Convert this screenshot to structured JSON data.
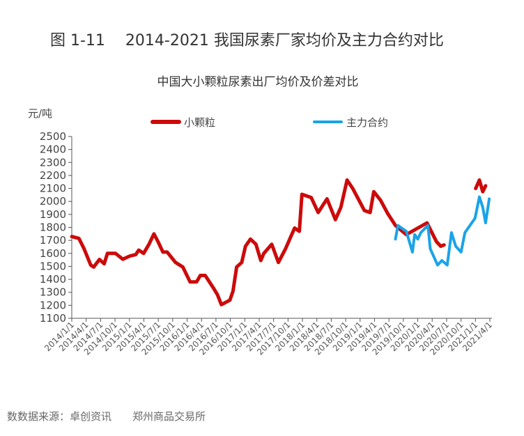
{
  "figure_title": "图 1-11　 2014-2021 我国尿素厂家均价及主力合约对比",
  "source": "数数据来源：卓创资讯　　郑州商品交易所",
  "colors": {
    "small_granule": "#cc0a0a",
    "main_contract": "#1aa3e8",
    "axis": "#555555"
  },
  "chart_data": {
    "type": "line",
    "title": "中国大小颗粒尿素出厂均价及价差对比",
    "ylabel": "元/吨",
    "xlabel": "",
    "ylim": [
      1100,
      2500
    ],
    "yticks": [
      1100,
      1200,
      1300,
      1400,
      1500,
      1600,
      1700,
      1800,
      1900,
      2000,
      2100,
      2200,
      2300,
      2400,
      2500
    ],
    "xlim": [
      "2014-01-01",
      "2021-04-01"
    ],
    "xticks": [
      "2014/1/1",
      "2014/4/1",
      "2014/7/1",
      "2014/10/1",
      "2015/1/1",
      "2015/4/1",
      "2015/7/1",
      "2015/10/1",
      "2016/1/1",
      "2016/4/1",
      "2016/7/1",
      "2016/10/1",
      "2017/1/1",
      "2017/4/1",
      "2017/7/1",
      "2017/10/1",
      "2018/1/1",
      "2018/4/1",
      "2018/7/1",
      "2018/10/1",
      "2019/1/1",
      "2019/4/1",
      "2019/7/1",
      "2019/10/1",
      "2020/1/1",
      "2020/4/1",
      "2020/7/1",
      "2020/10/1",
      "2021/1/1",
      "2021/4/1"
    ],
    "grid": false,
    "legend": "top",
    "series": [
      {
        "name": "小颗粒",
        "color": "#cc0a0a",
        "points": [
          [
            "2014-01-01",
            1730
          ],
          [
            "2014-02-15",
            1715
          ],
          [
            "2014-03-20",
            1635
          ],
          [
            "2014-05-01",
            1510
          ],
          [
            "2014-05-20",
            1495
          ],
          [
            "2014-06-25",
            1553
          ],
          [
            "2014-07-25",
            1520
          ],
          [
            "2014-08-15",
            1600
          ],
          [
            "2014-10-05",
            1600
          ],
          [
            "2014-11-20",
            1555
          ],
          [
            "2015-01-05",
            1580
          ],
          [
            "2015-02-10",
            1590
          ],
          [
            "2015-03-01",
            1625
          ],
          [
            "2015-04-01",
            1600
          ],
          [
            "2015-05-05",
            1670
          ],
          [
            "2015-06-05",
            1750
          ],
          [
            "2015-07-01",
            1690
          ],
          [
            "2015-08-01",
            1610
          ],
          [
            "2015-08-28",
            1610
          ],
          [
            "2015-10-20",
            1530
          ],
          [
            "2015-12-05",
            1495
          ],
          [
            "2016-01-20",
            1380
          ],
          [
            "2016-03-01",
            1380
          ],
          [
            "2016-03-25",
            1430
          ],
          [
            "2016-04-25",
            1430
          ],
          [
            "2016-06-15",
            1335
          ],
          [
            "2016-07-12",
            1280
          ],
          [
            "2016-08-05",
            1205
          ],
          [
            "2016-09-28",
            1240
          ],
          [
            "2016-10-18",
            1310
          ],
          [
            "2016-11-10",
            1495
          ],
          [
            "2016-12-12",
            1530
          ],
          [
            "2017-01-05",
            1655
          ],
          [
            "2017-02-05",
            1710
          ],
          [
            "2017-03-12",
            1670
          ],
          [
            "2017-04-12",
            1545
          ],
          [
            "2017-05-01",
            1600
          ],
          [
            "2017-06-20",
            1670
          ],
          [
            "2017-08-01",
            1530
          ],
          [
            "2017-09-15",
            1635
          ],
          [
            "2017-11-12",
            1795
          ],
          [
            "2017-12-12",
            1770
          ],
          [
            "2017-12-28",
            2055
          ],
          [
            "2018-02-25",
            2030
          ],
          [
            "2018-04-10",
            1915
          ],
          [
            "2018-06-05",
            2020
          ],
          [
            "2018-07-28",
            1860
          ],
          [
            "2018-09-01",
            1955
          ],
          [
            "2018-10-10",
            2165
          ],
          [
            "2018-11-15",
            2100
          ],
          [
            "2019-01-28",
            1930
          ],
          [
            "2019-03-05",
            1915
          ],
          [
            "2019-03-28",
            2075
          ],
          [
            "2019-05-10",
            2010
          ],
          [
            "2019-06-25",
            1905
          ],
          [
            "2019-08-12",
            1815
          ],
          [
            "2019-10-20",
            1745
          ],
          [
            "2020-02-28",
            1835
          ],
          [
            "2020-04-28",
            1690
          ],
          [
            "2020-05-25",
            1655
          ],
          [
            "2020-06-15",
            1665
          ],
          [
            "2020-06-16",
            null
          ],
          [
            "2021-01-01",
            2100
          ],
          [
            "2021-01-25",
            2165
          ],
          [
            "2021-02-15",
            2075
          ],
          [
            "2021-03-05",
            2120
          ]
        ]
      },
      {
        "name": "主力合约",
        "color": "#1aa3e8",
        "points": [
          [
            "2019-08-12",
            1710
          ],
          [
            "2019-08-28",
            1815
          ],
          [
            "2019-10-20",
            1770
          ],
          [
            "2019-11-28",
            1610
          ],
          [
            "2019-12-12",
            1745
          ],
          [
            "2020-01-01",
            1710
          ],
          [
            "2020-01-20",
            1760
          ],
          [
            "2020-03-05",
            1815
          ],
          [
            "2020-03-20",
            1635
          ],
          [
            "2020-05-05",
            1510
          ],
          [
            "2020-06-01",
            1545
          ],
          [
            "2020-07-05",
            1510
          ],
          [
            "2020-08-01",
            1760
          ],
          [
            "2020-08-28",
            1655
          ],
          [
            "2020-10-01",
            1610
          ],
          [
            "2020-10-25",
            1760
          ],
          [
            "2020-12-28",
            1870
          ],
          [
            "2021-01-25",
            2035
          ],
          [
            "2021-02-15",
            1955
          ],
          [
            "2021-03-05",
            1835
          ],
          [
            "2021-03-28",
            2020
          ]
        ]
      }
    ]
  }
}
